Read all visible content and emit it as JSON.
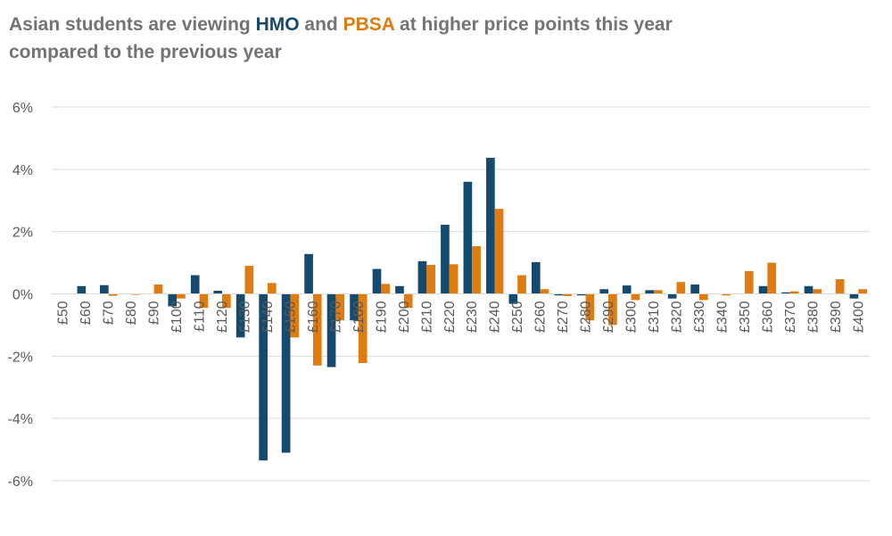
{
  "title": {
    "part1": "Asian students are viewing ",
    "series1": "HMO",
    "part2": " and ",
    "series2": "PBSA",
    "part3": " at higher price points this year compared to the previous year"
  },
  "colors": {
    "HMO": "#154a6f",
    "PBSA": "#e07b10",
    "grid": "#d9d9d9",
    "title": "#737373"
  },
  "chart_data": {
    "type": "bar",
    "title": "Asian students are viewing HMO and PBSA at higher price points this year compared to the previous year",
    "xlabel": "",
    "ylabel": "",
    "ylim": [
      -6,
      6
    ],
    "yticks": [
      "-6%",
      "-4%",
      "-2%",
      "0%",
      "2%",
      "4%",
      "6%"
    ],
    "grid": true,
    "legend": "none",
    "categories": [
      "£50",
      "£60",
      "£70",
      "£80",
      "£90",
      "£100",
      "£110",
      "£120",
      "£130",
      "£140",
      "£150",
      "£160",
      "£170",
      "£180",
      "£190",
      "£200",
      "£210",
      "£220",
      "£230",
      "£240",
      "£250",
      "£260",
      "£270",
      "£280",
      "£290",
      "£300",
      "£310",
      "£320",
      "£330",
      "£340",
      "£350",
      "£360",
      "£370",
      "£380",
      "£390",
      "£400"
    ],
    "series": [
      {
        "name": "HMO",
        "values": [
          0,
          0.25,
          0.28,
          0,
          0,
          -0.4,
          0.6,
          0.1,
          -1.4,
          -5.35,
          -5.1,
          1.28,
          -2.35,
          -0.85,
          0.8,
          0.25,
          1.05,
          2.22,
          3.6,
          4.37,
          -0.32,
          1.02,
          -0.05,
          -0.05,
          0.15,
          0.27,
          0.12,
          -0.15,
          0.3,
          0,
          0,
          0.25,
          0.05,
          0.25,
          0,
          -0.15
        ]
      },
      {
        "name": "PBSA",
        "values": [
          0,
          0,
          -0.06,
          -0.03,
          0.3,
          -0.15,
          -0.45,
          -0.45,
          0.9,
          0.35,
          -1.4,
          -2.3,
          -0.85,
          -2.22,
          0.32,
          -0.45,
          0.93,
          0.95,
          1.53,
          2.73,
          0.6,
          0.15,
          -0.07,
          -0.85,
          -1.0,
          -0.2,
          0.12,
          0.38,
          -0.2,
          -0.05,
          0.73,
          1.0,
          0.08,
          0.15,
          0.47,
          0.15
        ]
      }
    ]
  }
}
